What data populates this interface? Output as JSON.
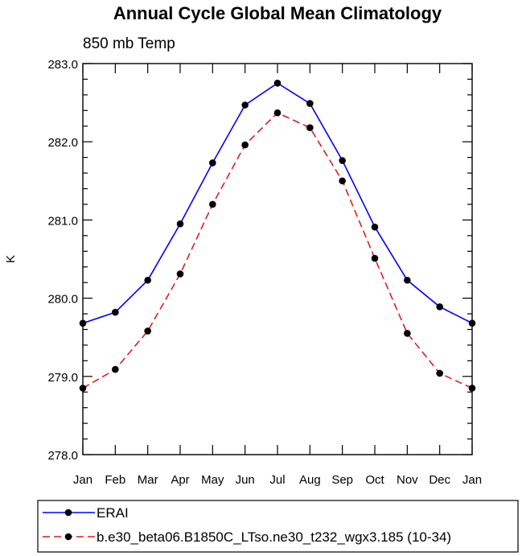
{
  "chart_data": {
    "type": "line",
    "title": "Annual Cycle Global Mean Climatology",
    "subtitle": "850 mb Temp",
    "xlabel": "",
    "ylabel": "K",
    "categories": [
      "Jan",
      "Feb",
      "Mar",
      "Apr",
      "May",
      "Jun",
      "Jul",
      "Aug",
      "Sep",
      "Oct",
      "Nov",
      "Dec",
      "Jan"
    ],
    "ylim": [
      278.0,
      283.0
    ],
    "yticks": [
      "278.0",
      "279.0",
      "280.0",
      "281.0",
      "282.0",
      "283.0"
    ],
    "grid": false,
    "legend_position": "bottom",
    "series": [
      {
        "name": "ERAI",
        "color": "#0000ff",
        "dash": "solid",
        "values": [
          279.68,
          279.82,
          280.23,
          280.95,
          281.73,
          282.47,
          282.75,
          282.49,
          281.76,
          280.91,
          280.23,
          279.89,
          279.68
        ]
      },
      {
        "name": "b.e30_beta06.B1850C_LTso.ne30_t232_wgx3.185 (10-34)",
        "color": "#e41a1c",
        "dash": "dashed",
        "values": [
          278.85,
          279.09,
          279.58,
          280.31,
          281.2,
          281.96,
          282.37,
          282.18,
          281.5,
          280.51,
          279.55,
          279.04,
          278.85
        ]
      }
    ]
  }
}
